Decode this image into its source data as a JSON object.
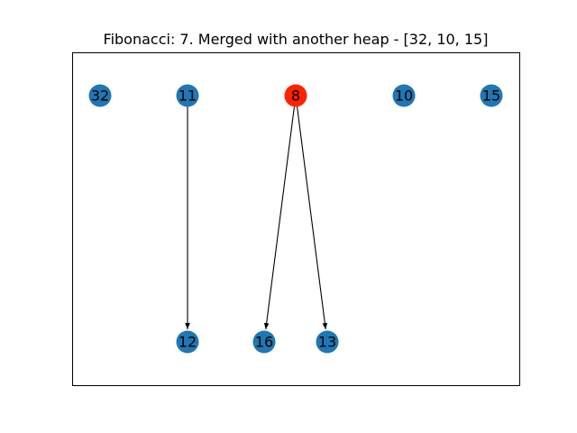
{
  "figure": {
    "title": "Fibonacci: 7. Merged with another heap - [32, 10, 15]"
  },
  "colors": {
    "default_node": "#1f77b4",
    "highlight_node": "#ff2200",
    "edge": "#000000",
    "background": "#ffffff"
  },
  "graph": {
    "nodes": [
      {
        "id": "n32",
        "label": "32",
        "highlight": false
      },
      {
        "id": "n11",
        "label": "11",
        "highlight": false
      },
      {
        "id": "n8",
        "label": "8",
        "highlight": true
      },
      {
        "id": "n10",
        "label": "10",
        "highlight": false
      },
      {
        "id": "n15",
        "label": "15",
        "highlight": false
      },
      {
        "id": "n12",
        "label": "12",
        "highlight": false
      },
      {
        "id": "n16",
        "label": "16",
        "highlight": false
      },
      {
        "id": "n13",
        "label": "13",
        "highlight": false
      }
    ],
    "edges": [
      {
        "from": "n11",
        "to": "n12"
      },
      {
        "from": "n8",
        "to": "n16"
      },
      {
        "from": "n8",
        "to": "n13"
      }
    ]
  }
}
